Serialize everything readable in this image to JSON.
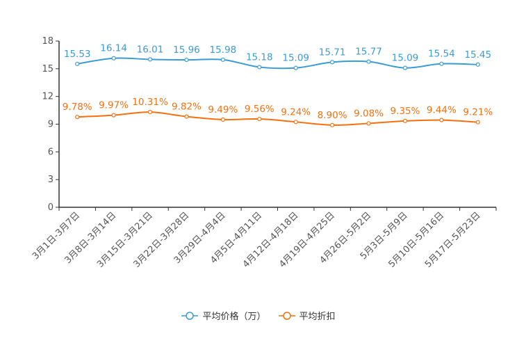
{
  "chart_data": {
    "type": "line",
    "categories": [
      "3月1日-3月7日",
      "3月8日-3月14日",
      "3月15日-3月21日",
      "3月22日-3月28日",
      "3月29日-4月4日",
      "4月5日-4月11日",
      "4月12日-4月18日",
      "4月19日-4月25日",
      "4月26日-5月2日",
      "5月3日-5月9日",
      "5月10日-5月16日",
      "5月17日-5月23日"
    ],
    "series": [
      {
        "name": "平均价格（万）",
        "color": "#3a9bd5",
        "values": [
          15.53,
          16.14,
          16.01,
          15.96,
          15.98,
          15.18,
          15.09,
          15.71,
          15.77,
          15.09,
          15.54,
          15.45
        ],
        "labels": [
          "15.53",
          "16.14",
          "16.01",
          "15.96",
          "15.98",
          "15.18",
          "15.09",
          "15.71",
          "15.77",
          "15.09",
          "15.54",
          "15.45"
        ]
      },
      {
        "name": "平均折扣",
        "color": "#f5700f",
        "values": [
          9.78,
          9.97,
          10.31,
          9.82,
          9.49,
          9.56,
          9.24,
          8.9,
          9.08,
          9.35,
          9.44,
          9.21
        ],
        "labels": [
          "9.78%",
          "9.97%",
          "10.31%",
          "9.82%",
          "9.49%",
          "9.56%",
          "9.24%",
          "8.90%",
          "9.08%",
          "9.35%",
          "9.44%",
          "9.21%"
        ]
      }
    ],
    "yticks": [
      "0",
      "3",
      "6",
      "9",
      "12",
      "15",
      "18"
    ],
    "ylim": [
      0,
      18
    ],
    "xlabel": "",
    "ylabel": "",
    "title": "",
    "grid": false,
    "legend_position": "bottom"
  }
}
